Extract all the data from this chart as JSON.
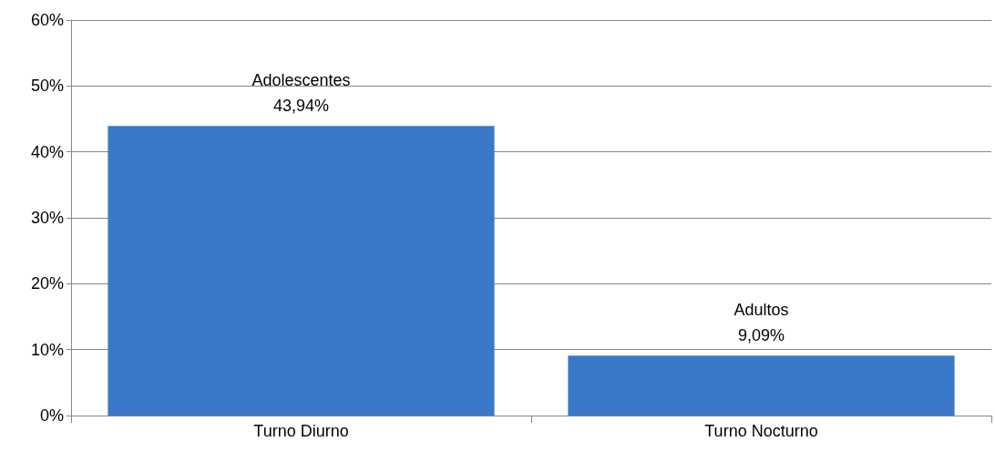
{
  "chart_data": {
    "type": "bar",
    "categories": [
      "Turno Diurno",
      "Turno Nocturno"
    ],
    "values": [
      43.94,
      9.09
    ],
    "color": "#3a78c8",
    "value_labels": [
      "Adolescentes\n43,94%",
      "Adultos\n9,09%"
    ],
    "ylim": [
      0,
      60
    ],
    "yticks": [
      {
        "value": 0,
        "label": "0%"
      },
      {
        "value": 10,
        "label": "10%"
      },
      {
        "value": 20,
        "label": "20%"
      },
      {
        "value": 30,
        "label": "30%"
      },
      {
        "value": 40,
        "label": "40%"
      },
      {
        "value": 50,
        "label": "50%"
      },
      {
        "value": 60,
        "label": "60%"
      }
    ],
    "grid": "y"
  }
}
